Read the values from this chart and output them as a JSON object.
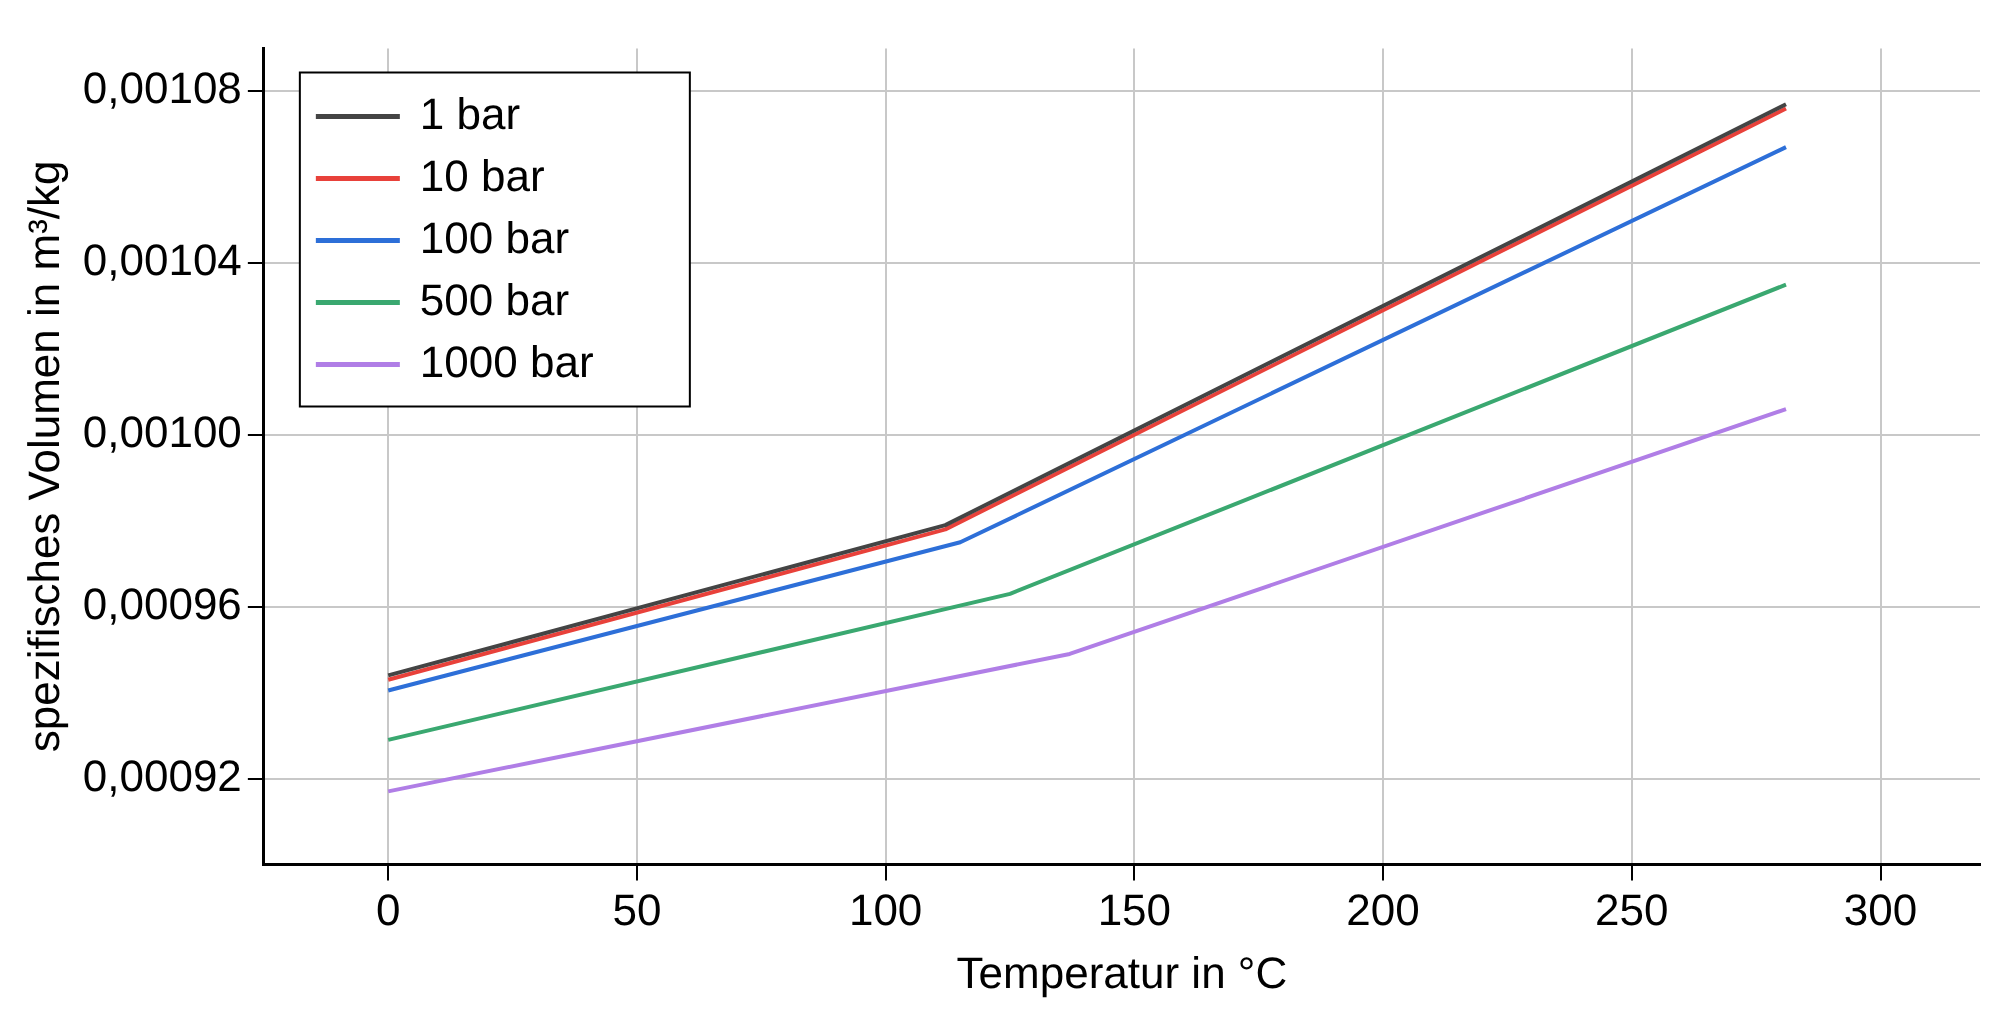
{
  "chart_data": {
    "type": "line",
    "xlabel": "Temperatur in °C",
    "ylabel": "spezifisches Volumen in m³/kg",
    "xlim": [
      -25,
      320
    ],
    "xticks": [
      0,
      50,
      100,
      150,
      200,
      250,
      300
    ],
    "ylim": [
      0.0009,
      0.00109
    ],
    "yticks": [
      {
        "value": 0.00092,
        "label": "0,00092"
      },
      {
        "value": 0.00096,
        "label": "0,00096"
      },
      {
        "value": 0.001,
        "label": "0,00100"
      },
      {
        "value": 0.00104,
        "label": "0,00104"
      },
      {
        "value": 0.00108,
        "label": "0,00108"
      }
    ],
    "grid": true,
    "legend": "top left",
    "marker": "none",
    "line_style": "solid",
    "series": [
      {
        "name": "1 bar",
        "color": "#444444",
        "x": [
          0,
          112,
          281
        ],
        "values": [
          0.000944,
          0.000979,
          0.001077
        ]
      },
      {
        "name": "10 bar",
        "color": "#e8413a",
        "x": [
          0,
          112,
          281
        ],
        "values": [
          0.000943,
          0.000978,
          0.001076
        ]
      },
      {
        "name": "100 bar",
        "color": "#2d6fd8",
        "x": [
          0,
          115,
          281
        ],
        "values": [
          0.0009405,
          0.000975,
          0.001067
        ]
      },
      {
        "name": "500 bar",
        "color": "#3aa870",
        "x": [
          0,
          125,
          281
        ],
        "values": [
          0.000929,
          0.000963,
          0.001035
        ]
      },
      {
        "name": "1000 bar",
        "color": "#b07ee6",
        "x": [
          0,
          137,
          281
        ],
        "values": [
          0.000917,
          0.000949,
          0.001006
        ]
      }
    ]
  }
}
